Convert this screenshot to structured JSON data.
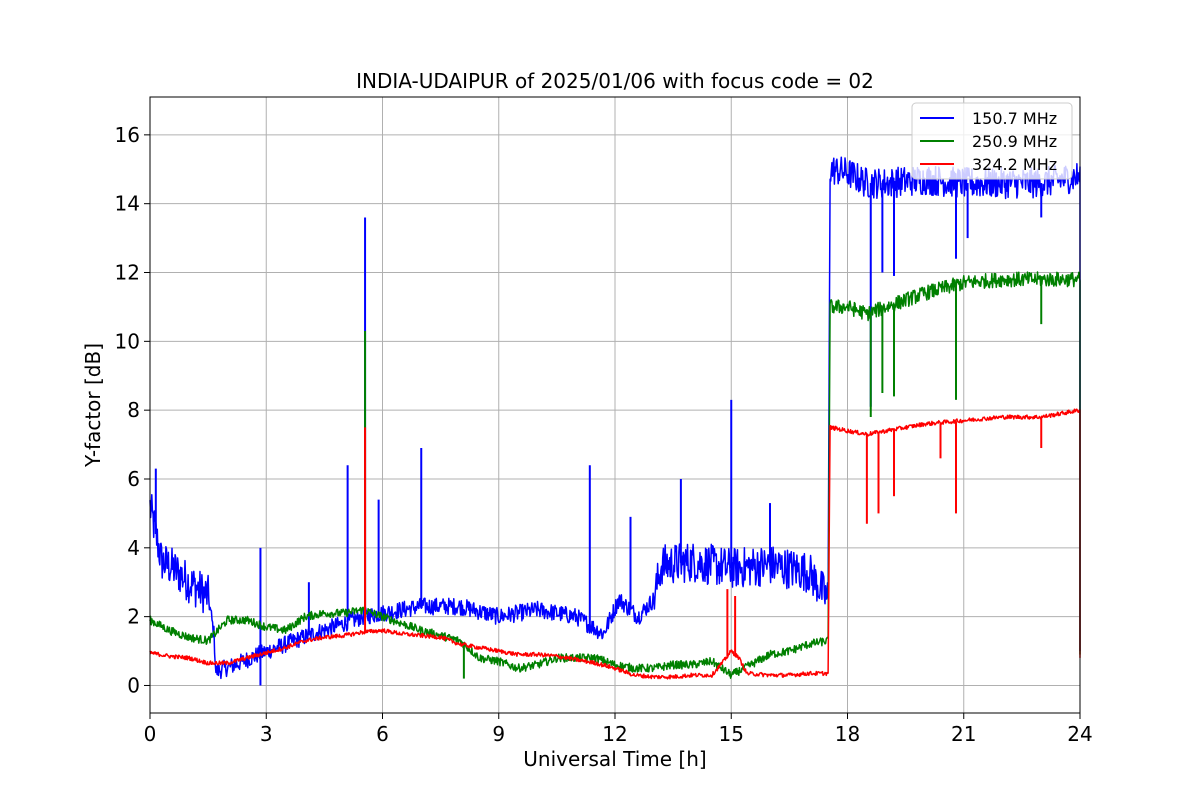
{
  "chart_data": {
    "type": "line",
    "title": "INDIA-UDAIPUR of 2025/01/06 with focus code = 02",
    "xlabel": "Universal Time [h]",
    "ylabel": "Y-factor [dB]",
    "xlim": [
      0,
      24
    ],
    "ylim": [
      -0.8,
      17.1
    ],
    "xticks": [
      0,
      3,
      6,
      9,
      12,
      15,
      18,
      21,
      24
    ],
    "yticks": [
      0,
      2,
      4,
      6,
      8,
      10,
      12,
      14,
      16
    ],
    "grid": true,
    "legend_position": "top-right",
    "series": [
      {
        "name": "150.7 MHz",
        "color": "#0000ff",
        "noise": 0.25,
        "points": [
          [
            0,
            5.2
          ],
          [
            0.3,
            3.6
          ],
          [
            0.6,
            3.4
          ],
          [
            1.0,
            3.0
          ],
          [
            1.5,
            2.6
          ],
          [
            1.65,
            1.5
          ],
          [
            1.7,
            0.4
          ],
          [
            2.2,
            0.6
          ],
          [
            2.8,
            0.9
          ],
          [
            3.5,
            1.2
          ],
          [
            4.2,
            1.5
          ],
          [
            5.0,
            1.8
          ],
          [
            5.5,
            2.0
          ],
          [
            6.0,
            2.1
          ],
          [
            7.0,
            2.3
          ],
          [
            8.0,
            2.3
          ],
          [
            9.0,
            2.0
          ],
          [
            10.0,
            2.2
          ],
          [
            11.0,
            2.0
          ],
          [
            11.7,
            1.5
          ],
          [
            12.1,
            2.5
          ],
          [
            12.6,
            2.0
          ],
          [
            13.0,
            2.5
          ],
          [
            13.2,
            3.5
          ],
          [
            14.0,
            3.6
          ],
          [
            15.0,
            3.4
          ],
          [
            16.0,
            3.5
          ],
          [
            17.0,
            3.3
          ],
          [
            17.5,
            2.5
          ],
          [
            17.55,
            15.0
          ],
          [
            18.0,
            14.9
          ],
          [
            18.5,
            14.6
          ],
          [
            19.0,
            14.6
          ],
          [
            20.0,
            14.7
          ],
          [
            21.0,
            14.6
          ],
          [
            22.0,
            14.6
          ],
          [
            23.0,
            14.6
          ],
          [
            24.0,
            14.8
          ],
          [
            24.0,
            1.0
          ]
        ],
        "spikes": [
          [
            0.15,
            6.3
          ],
          [
            2.85,
            4.0
          ],
          [
            2.85,
            0.0
          ],
          [
            4.1,
            3.0
          ],
          [
            5.1,
            6.4
          ],
          [
            5.55,
            13.6
          ],
          [
            5.9,
            5.4
          ],
          [
            7.0,
            6.9
          ],
          [
            11.35,
            6.4
          ],
          [
            12.4,
            4.9
          ],
          [
            13.7,
            6.0
          ],
          [
            15.0,
            8.3
          ],
          [
            16.0,
            5.3
          ],
          [
            18.6,
            8.1
          ],
          [
            18.9,
            12.0
          ],
          [
            19.2,
            11.9
          ],
          [
            20.8,
            12.4
          ],
          [
            21.1,
            13.0
          ],
          [
            23.0,
            13.6
          ]
        ]
      },
      {
        "name": "250.9 MHz",
        "color": "#008000",
        "noise": 0.12,
        "points": [
          [
            0,
            1.9
          ],
          [
            0.5,
            1.6
          ],
          [
            1.0,
            1.4
          ],
          [
            1.5,
            1.3
          ],
          [
            2.0,
            1.9
          ],
          [
            2.5,
            1.9
          ],
          [
            3.0,
            1.7
          ],
          [
            3.5,
            1.6
          ],
          [
            4.0,
            2.0
          ],
          [
            4.5,
            2.1
          ],
          [
            5.0,
            2.1
          ],
          [
            5.5,
            2.2
          ],
          [
            6.0,
            2.0
          ],
          [
            6.5,
            1.8
          ],
          [
            7.0,
            1.6
          ],
          [
            8.0,
            1.3
          ],
          [
            8.5,
            0.8
          ],
          [
            9.0,
            0.7
          ],
          [
            9.5,
            0.5
          ],
          [
            10.0,
            0.6
          ],
          [
            10.5,
            0.8
          ],
          [
            11.0,
            0.8
          ],
          [
            11.5,
            0.8
          ],
          [
            12.0,
            0.6
          ],
          [
            12.5,
            0.5
          ],
          [
            13.0,
            0.5
          ],
          [
            13.5,
            0.6
          ],
          [
            14.0,
            0.6
          ],
          [
            14.5,
            0.7
          ],
          [
            15.0,
            0.3
          ],
          [
            15.5,
            0.6
          ],
          [
            16.0,
            0.9
          ],
          [
            16.5,
            1.0
          ],
          [
            17.0,
            1.2
          ],
          [
            17.5,
            1.3
          ],
          [
            17.55,
            11.0
          ],
          [
            18.0,
            11.0
          ],
          [
            18.5,
            10.8
          ],
          [
            19.0,
            11.0
          ],
          [
            19.5,
            11.2
          ],
          [
            20.0,
            11.4
          ],
          [
            21.0,
            11.7
          ],
          [
            22.0,
            11.8
          ],
          [
            23.0,
            11.8
          ],
          [
            24.0,
            11.8
          ],
          [
            24.0,
            0.9
          ]
        ],
        "spikes": [
          [
            5.55,
            10.3
          ],
          [
            8.1,
            0.2
          ],
          [
            18.6,
            7.8
          ],
          [
            18.9,
            8.5
          ],
          [
            19.2,
            8.4
          ],
          [
            20.8,
            8.3
          ],
          [
            23.0,
            10.5
          ]
        ]
      },
      {
        "name": "324.2 MHz",
        "color": "#ff0000",
        "noise": 0.06,
        "points": [
          [
            0,
            0.95
          ],
          [
            0.5,
            0.85
          ],
          [
            1.0,
            0.8
          ],
          [
            1.5,
            0.65
          ],
          [
            2.0,
            0.65
          ],
          [
            2.5,
            0.8
          ],
          [
            3.0,
            0.95
          ],
          [
            3.5,
            1.1
          ],
          [
            4.0,
            1.3
          ],
          [
            4.5,
            1.4
          ],
          [
            5.0,
            1.45
          ],
          [
            5.5,
            1.55
          ],
          [
            6.0,
            1.6
          ],
          [
            6.5,
            1.5
          ],
          [
            7.0,
            1.45
          ],
          [
            7.5,
            1.4
          ],
          [
            8.0,
            1.2
          ],
          [
            8.5,
            1.1
          ],
          [
            9.0,
            1.0
          ],
          [
            9.5,
            0.9
          ],
          [
            10.0,
            0.9
          ],
          [
            10.5,
            0.85
          ],
          [
            11.0,
            0.75
          ],
          [
            11.5,
            0.65
          ],
          [
            12.0,
            0.5
          ],
          [
            12.5,
            0.3
          ],
          [
            13.0,
            0.25
          ],
          [
            13.5,
            0.25
          ],
          [
            14.0,
            0.3
          ],
          [
            14.5,
            0.3
          ],
          [
            14.8,
            0.7
          ],
          [
            15.0,
            1.0
          ],
          [
            15.2,
            0.8
          ],
          [
            15.4,
            0.35
          ],
          [
            16.0,
            0.3
          ],
          [
            16.5,
            0.3
          ],
          [
            17.0,
            0.35
          ],
          [
            17.5,
            0.35
          ],
          [
            17.55,
            7.5
          ],
          [
            18.0,
            7.4
          ],
          [
            18.5,
            7.3
          ],
          [
            19.0,
            7.4
          ],
          [
            19.5,
            7.5
          ],
          [
            20.0,
            7.6
          ],
          [
            21.0,
            7.7
          ],
          [
            22.0,
            7.8
          ],
          [
            23.0,
            7.8
          ],
          [
            24.0,
            8.0
          ],
          [
            24.0,
            0.8
          ]
        ],
        "spikes": [
          [
            5.55,
            7.5
          ],
          [
            14.9,
            2.8
          ],
          [
            15.1,
            2.6
          ],
          [
            18.5,
            4.7
          ],
          [
            18.8,
            5.0
          ],
          [
            19.2,
            5.5
          ],
          [
            20.4,
            6.6
          ],
          [
            20.8,
            5.0
          ],
          [
            23.0,
            6.9
          ]
        ]
      }
    ]
  }
}
